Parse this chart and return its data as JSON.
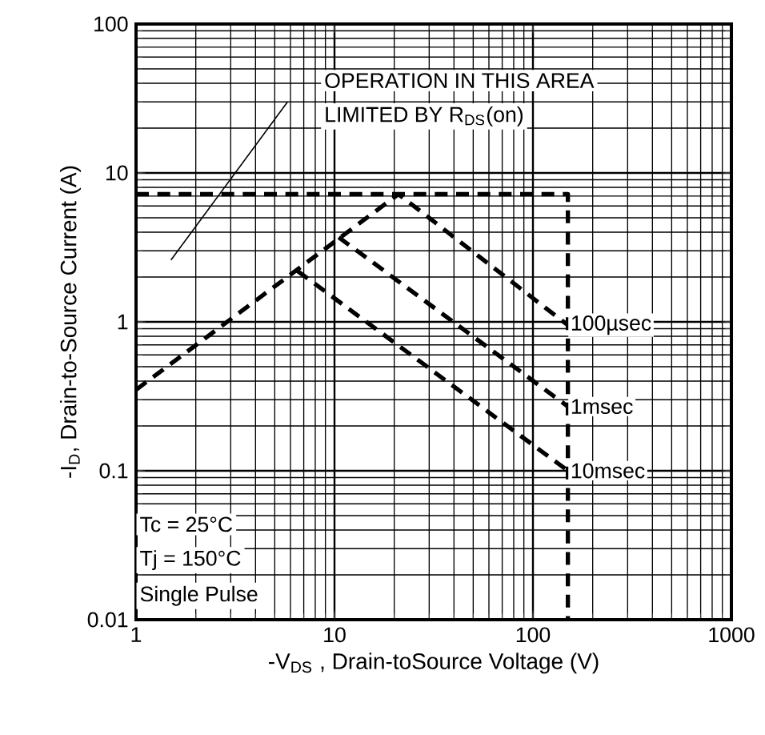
{
  "chart_data": {
    "type": "line",
    "xlabel": "-V$_{DS}$ , Drain-toSource Voltage (V)",
    "ylabel": "-I$_{D}$, Drain-to-Source Current (A)",
    "log": "xy",
    "xlim": [
      1,
      1000
    ],
    "ylim": [
      0.01,
      100
    ],
    "xticks": [
      1,
      10,
      100,
      1000
    ],
    "yticks": [
      0.01,
      0.1,
      1,
      10,
      100
    ],
    "grid": true,
    "legend": false,
    "marker": "none",
    "series": [
      {
        "color": "#000000",
        "line_style": "dashed",
        "x": [
          1,
          150,
          150
        ],
        "values": [
          7.2,
          7.2,
          0.01
        ]
      },
      {
        "name": "100µsec",
        "color": "#000000",
        "line_style": "dashed",
        "x": [
          1,
          21,
          150
        ],
        "values": [
          0.35,
          7.2,
          0.95
        ]
      },
      {
        "name": "1msec",
        "color": "#000000",
        "line_style": "dashed",
        "x": [
          10.5,
          150
        ],
        "values": [
          3.7,
          0.27
        ]
      },
      {
        "name": "10msec",
        "color": "#000000",
        "line_style": "dashed",
        "x": [
          6.5,
          150
        ],
        "values": [
          2.2,
          0.1
        ]
      },
      {
        "color": "#000000",
        "line_style": "solid",
        "x": [
          1.5,
          5.8
        ],
        "values": [
          2.6,
          30
        ]
      }
    ],
    "annotations": [
      "OPERATION IN THIS AREA",
      "LIMITED BY R$_{DS}$(on)",
      "Tc = 25°C",
      "Tj = 150°C",
      "Single Pulse"
    ]
  }
}
